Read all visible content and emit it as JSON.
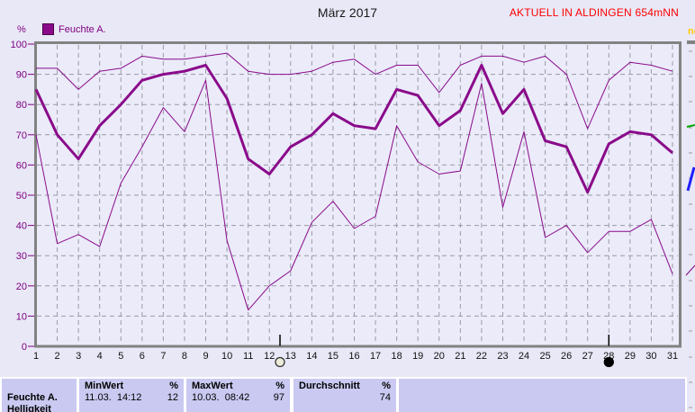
{
  "window": {
    "title": "März 2017",
    "header_right": "AKTUELL IN ALDINGEN 654mNN"
  },
  "legend": {
    "label": "Feuchte A."
  },
  "colors": {
    "series_line": "#8a0a8a",
    "alert_text": "#ff0000",
    "axis_label": "#800080",
    "grid": "#9a9aa6",
    "axis": "#828282",
    "table_cell_bg": "#c9c9f1",
    "plot_bg": "#ebebfa"
  },
  "chart_data": {
    "type": "line",
    "title": "März 2017",
    "ylabel": "%",
    "ylim": [
      0,
      100
    ],
    "ytick_step": 10,
    "grid": true,
    "legend_position": "top-left",
    "x": [
      1,
      2,
      3,
      4,
      5,
      6,
      7,
      8,
      9,
      10,
      11,
      12,
      13,
      14,
      15,
      16,
      17,
      18,
      19,
      20,
      21,
      22,
      23,
      24,
      25,
      26,
      27,
      28,
      29,
      30,
      31
    ],
    "series": [
      {
        "id": "tagesmaximum",
        "thick": false,
        "values": [
          92,
          92,
          85,
          91,
          92,
          96,
          95,
          95,
          96,
          97,
          91,
          90,
          90,
          91,
          94,
          95,
          90,
          93,
          93,
          84,
          93,
          96,
          96,
          94,
          96,
          90,
          72,
          88,
          94,
          93,
          91
        ]
      },
      {
        "id": "feuchte-a-mittelwert",
        "thick": true,
        "values": [
          85,
          70,
          62,
          73,
          80,
          88,
          90,
          91,
          93,
          82,
          62,
          57,
          66,
          70,
          77,
          73,
          72,
          85,
          83,
          73,
          78,
          93,
          77,
          85,
          68,
          66,
          51,
          67,
          71,
          70,
          64
        ]
      },
      {
        "id": "tagesminimum",
        "thick": false,
        "values": [
          70,
          34,
          37,
          33,
          54,
          66,
          79,
          71,
          88,
          35,
          12,
          20,
          25,
          41,
          48,
          39,
          43,
          73,
          61,
          57,
          58,
          87,
          46,
          71,
          36,
          40,
          31,
          38,
          38,
          42,
          24
        ]
      }
    ],
    "moon_markers": [
      {
        "day": 12.5,
        "style": "open"
      },
      {
        "day": 28,
        "style": "filled"
      }
    ]
  },
  "table": {
    "row_label": "Feuchte A.",
    "next_row_label": "Helligkeit",
    "min": {
      "header": "MinWert",
      "unit": "%",
      "datetime": "11.03.  14:12",
      "value": "12"
    },
    "max": {
      "header": "MaxWert",
      "unit": "%",
      "datetime": "10.03.  08:42",
      "value": "97"
    },
    "avg": {
      "header": "Durchschnitt",
      "unit": "%",
      "value": "74"
    }
  },
  "adjacent_panel": {
    "text_fragment": "ne",
    "text_color": "#ffc800",
    "line_fragments": [
      {
        "id": "green-line-fragment",
        "color": "#00aa00"
      },
      {
        "id": "blue-line-fragment",
        "color": "#2020ff"
      },
      {
        "id": "purple-line-fragment",
        "color": "#800080"
      }
    ]
  }
}
